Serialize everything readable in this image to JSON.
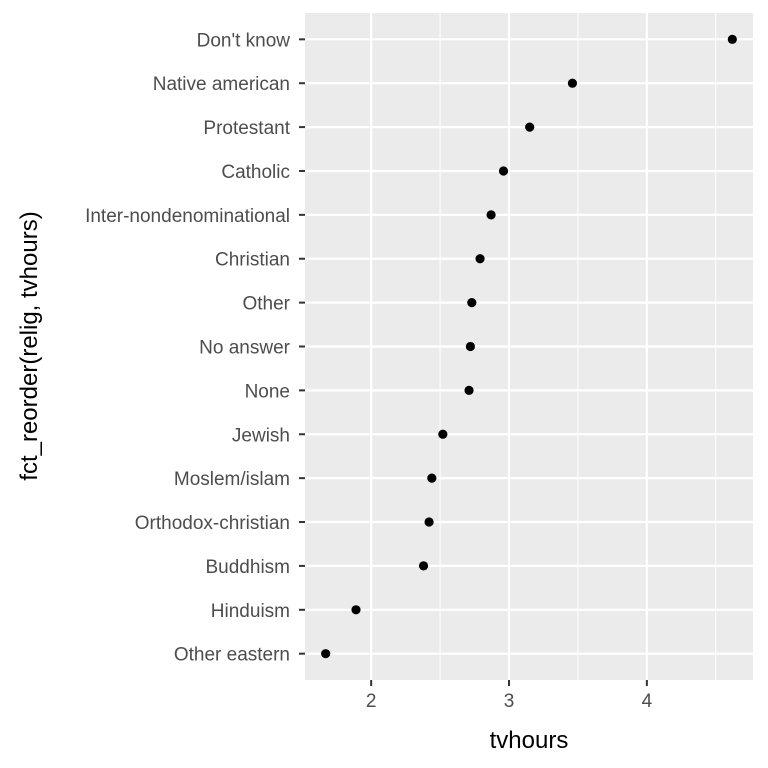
{
  "chart_data": {
    "type": "scatter",
    "xlabel": "tvhours",
    "ylabel": "fct_reorder(relig, tvhours)",
    "xlim": [
      1.52,
      4.77
    ],
    "xticks": [
      2,
      3,
      4
    ],
    "xtick_labels": [
      "2",
      "3",
      "4"
    ],
    "grid": true,
    "colors": {
      "panel": "#ebebeb",
      "grid": "#ffffff",
      "point": "#000000",
      "tick_text": "#4d4d4d",
      "tick": "#333333"
    },
    "categories": [
      "Other eastern",
      "Hinduism",
      "Buddhism",
      "Orthodox-christian",
      "Moslem/islam",
      "Jewish",
      "None",
      "No answer",
      "Other",
      "Christian",
      "Inter-nondenominational",
      "Catholic",
      "Protestant",
      "Native american",
      "Don't know"
    ],
    "values": [
      1.67,
      1.89,
      2.38,
      2.42,
      2.44,
      2.52,
      2.71,
      2.72,
      2.73,
      2.79,
      2.87,
      2.96,
      3.15,
      3.46,
      4.62
    ]
  }
}
